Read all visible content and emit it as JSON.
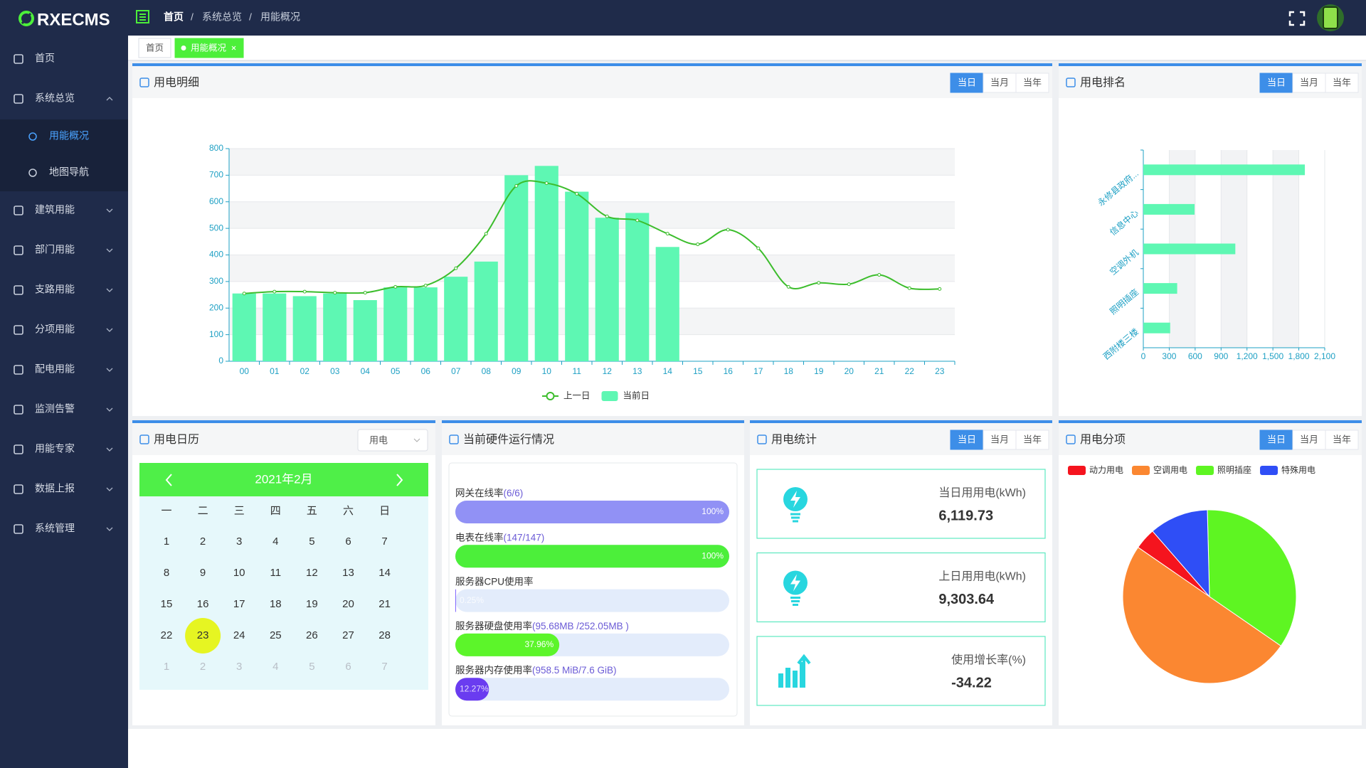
{
  "header": {
    "logo": "RXECMS",
    "breadcrumb": [
      "首页",
      "系统总览",
      "用能概况"
    ],
    "breadcrumb_separator": "/"
  },
  "sidebar": {
    "menu": [
      {
        "label": "首页"
      },
      {
        "label": "系统总览",
        "expanded": true,
        "children": [
          {
            "label": "用能概况",
            "active": true
          },
          {
            "label": "地图导航"
          }
        ]
      },
      {
        "label": "建筑用能"
      },
      {
        "label": "部门用能"
      },
      {
        "label": "支路用能"
      },
      {
        "label": "分项用能"
      },
      {
        "label": "配电用能"
      },
      {
        "label": "监测告警"
      },
      {
        "label": "用能专家"
      },
      {
        "label": "数据上报"
      },
      {
        "label": "系统管理"
      }
    ]
  },
  "tabs": [
    {
      "label": "首页"
    },
    {
      "label": "用能概况",
      "active": true
    }
  ],
  "period_buttons": [
    "当日",
    "当月",
    "当年"
  ],
  "chart_data": [
    {
      "type": "combo",
      "title": "用电明细",
      "categories": [
        "00",
        "01",
        "02",
        "03",
        "04",
        "05",
        "06",
        "07",
        "08",
        "09",
        "10",
        "11",
        "12",
        "13",
        "14",
        "15",
        "16",
        "17",
        "18",
        "19",
        "20",
        "21",
        "22",
        "23"
      ],
      "series": [
        {
          "name": "上一日",
          "type": "line",
          "color": "#3cbd2c",
          "values": [
            255,
            262,
            262,
            258,
            258,
            280,
            285,
            350,
            480,
            660,
            670,
            630,
            545,
            530,
            480,
            440,
            495,
            425,
            280,
            295,
            290,
            325,
            275,
            272
          ]
        },
        {
          "name": "当前日",
          "type": "bar",
          "color": "#5ef7b3",
          "values": [
            255,
            255,
            245,
            255,
            230,
            278,
            278,
            318,
            375,
            700,
            735,
            638,
            540,
            558,
            430,
            null,
            null,
            null,
            null,
            null,
            null,
            null,
            null,
            null
          ]
        }
      ],
      "ylim": [
        0,
        800
      ],
      "yticks": [
        0,
        100,
        200,
        300,
        400,
        500,
        600,
        700,
        800
      ],
      "grid": true,
      "legend": "bottom"
    },
    {
      "type": "hbar",
      "title": "用电排名",
      "categories": [
        "永修县政府...",
        "信息中心",
        "空调外机",
        "照明插座",
        "西附楼三楼"
      ],
      "values": [
        1870,
        593,
        1065,
        392,
        311
      ],
      "color": "#5ef7b3",
      "xlim": [
        0,
        2100
      ],
      "xticks": [
        0,
        300,
        600,
        900,
        {
          "value": 1200,
          "label": "1,200"
        },
        {
          "value": 1500,
          "label": "1,500"
        },
        {
          "value": 1800,
          "label": "1,800"
        },
        {
          "value": 2100,
          "label": "2,100"
        }
      ],
      "grid": true
    },
    {
      "type": "pie",
      "title": "用电分项",
      "categories": [
        "动力用电",
        "空调用电",
        "照明插座",
        "特殊用电"
      ],
      "values": [
        4,
        50,
        35,
        11
      ],
      "colors": [
        "#f5141e",
        "#fb8731",
        "#5ef522",
        "#2f4ef6"
      ],
      "legend": "top-left"
    }
  ],
  "calendar": {
    "title": "用电日历",
    "select": "用电",
    "month": "2021年2月",
    "weekdays": [
      "一",
      "二",
      "三",
      "四",
      "五",
      "六",
      "日"
    ],
    "weeks": [
      [
        1,
        2,
        3,
        4,
        5,
        6,
        7
      ],
      [
        8,
        9,
        10,
        11,
        12,
        13,
        14
      ],
      [
        15,
        16,
        17,
        18,
        19,
        20,
        21
      ],
      [
        22,
        23,
        24,
        25,
        26,
        27,
        28
      ]
    ],
    "next_month_days": [
      1,
      2,
      3,
      4,
      5,
      6,
      7
    ],
    "selected": 23
  },
  "hardware": {
    "title": "当前硬件运行情况",
    "items": [
      {
        "label": "网关在线率",
        "detail": "(6/6)",
        "percent": 100,
        "percent_label": "100%",
        "color": "#9191f5"
      },
      {
        "label": "电表在线率",
        "detail": "(147/147)",
        "percent": 100,
        "percent_label": "100%",
        "color": "#4cef3a"
      },
      {
        "label": "服务器CPU使用率",
        "percent": 0.25,
        "percent_label": "0.25%",
        "color": "#7b61ff"
      },
      {
        "label": "服务器硬盘使用率",
        "detail": "(95.68MB /252.05MB )",
        "percent": 37.96,
        "percent_label": "37.96%",
        "color": "#5cf52a"
      },
      {
        "label": "服务器内存使用率",
        "detail": "(958.5 MiB/7.6 GiB)",
        "percent": 12.27,
        "percent_label": "12.27%",
        "color": "#6a3cf0"
      }
    ]
  },
  "statistics": {
    "title": "用电统计",
    "items": [
      {
        "label": "当日用用电(kWh)",
        "value": "6,119.73"
      },
      {
        "label": "上日用用电(kWh)",
        "value": "9,303.64"
      },
      {
        "label": "使用增长率(%)",
        "value": "-34.22"
      }
    ]
  }
}
